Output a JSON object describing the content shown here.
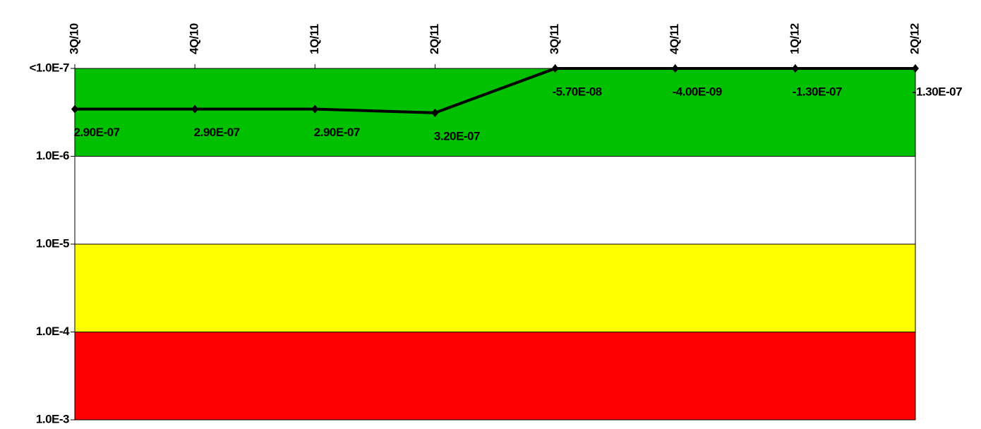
{
  "chart_data": {
    "type": "line",
    "categories": [
      "3Q/10",
      "4Q/10",
      "1Q/11",
      "2Q/11",
      "3Q/11",
      "4Q/11",
      "1Q/12",
      "2Q/12"
    ],
    "series": [
      {
        "color": "#000000",
        "values": [
          2.9e-07,
          2.9e-07,
          2.9e-07,
          3.2e-07,
          -5.7e-08,
          -4e-09,
          -1.3e-07,
          -1.3e-07
        ],
        "value_labels": [
          "2.90E-07",
          "2.90E-07",
          "2.90E-07",
          "3.20E-07",
          "-5.70E-08",
          "-4.00E-09",
          "-1.30E-07",
          "-1.30E-07"
        ]
      }
    ],
    "log_scale": true,
    "y_inverted": true,
    "ylim": [
      1e-07,
      0.001
    ],
    "yticks": [
      {
        "value": 1e-07,
        "label": "<1.0E-7"
      },
      {
        "value": 1e-06,
        "label": "1.0E-6"
      },
      {
        "value": 1e-05,
        "label": "1.0E-5"
      },
      {
        "value": 0.0001,
        "label": "1.0E-4"
      },
      {
        "value": 0.001,
        "label": "1.0E-3"
      }
    ],
    "bands": [
      {
        "from": 1e-07,
        "to": 1e-06,
        "color": "#00c000"
      },
      {
        "from": 1e-06,
        "to": 1e-05,
        "color": "#ffffff"
      },
      {
        "from": 1e-05,
        "to": 0.0001,
        "color": "#ffff00"
      },
      {
        "from": 0.0001,
        "to": 0.001,
        "color": "#ff0000"
      }
    ]
  }
}
